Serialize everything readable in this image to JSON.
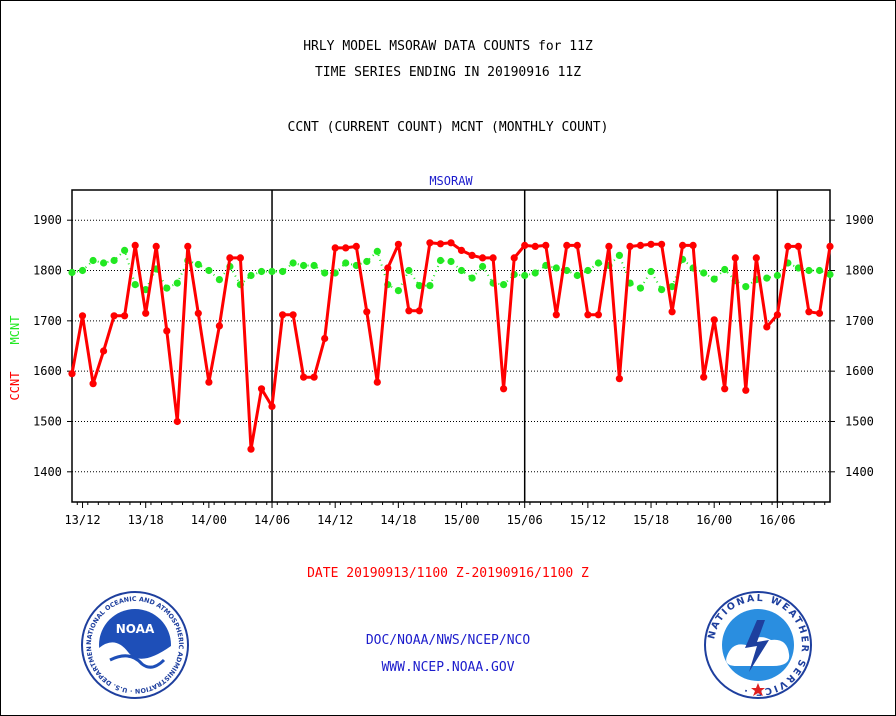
{
  "header": {
    "title_line1": "HRLY MODEL MSORAW DATA COUNTS for 11Z",
    "title_line2": "TIME SERIES ENDING IN 20190916 11Z",
    "subtitle": "CCNT (CURRENT COUNT) MCNT (MONTHLY COUNT)"
  },
  "footer": {
    "date_range": "DATE 20190913/1100 Z-20190916/1100 Z",
    "org_line": "DOC/NOAA/NWS/NCEP/NCO",
    "url_line": "WWW.NCEP.NOAA.GOV"
  },
  "logos": {
    "left_name": "NOAA",
    "left_ring_text": "NATIONAL OCEANIC AND ATMOSPHERIC ADMINISTRATION · U.S. DEPARTMENT OF COMMERCE ·",
    "right_ring_text": "NATIONAL WEATHER SERVICE ·"
  },
  "colors": {
    "ccnt": "#ff0000",
    "mcnt": "#22e822",
    "grid": "#000000",
    "title_blue": "#1c1ccc"
  },
  "chart_data": {
    "type": "line",
    "title": "MSORAW",
    "ylabel_left": [
      "CCNT",
      "MCNT"
    ],
    "ylim": [
      1340,
      1960
    ],
    "yticks": [
      1400,
      1500,
      1600,
      1700,
      1800,
      1900
    ],
    "xlim": [
      12.5,
      84.5
    ],
    "xticks": [
      {
        "x": 13.5,
        "label": "13/12"
      },
      {
        "x": 19.5,
        "label": "13/18"
      },
      {
        "x": 25.5,
        "label": "14/00"
      },
      {
        "x": 31.5,
        "label": "14/06"
      },
      {
        "x": 37.5,
        "label": "14/12"
      },
      {
        "x": 43.5,
        "label": "14/18"
      },
      {
        "x": 49.5,
        "label": "15/00"
      },
      {
        "x": 55.5,
        "label": "15/06"
      },
      {
        "x": 61.5,
        "label": "15/12"
      },
      {
        "x": 67.5,
        "label": "15/18"
      },
      {
        "x": 73.5,
        "label": "16/00"
      },
      {
        "x": 79.5,
        "label": "16/06"
      }
    ],
    "day_dividers": [
      31.5,
      55.5,
      79.5
    ],
    "grid": true,
    "series": [
      {
        "name": "CCNT",
        "values": [
          1595,
          1710,
          1575,
          1640,
          1710,
          1710,
          1850,
          1715,
          1848,
          1680,
          1500,
          1848,
          1715,
          1578,
          1690,
          1825,
          1825,
          1445,
          1565,
          1530,
          1712,
          1712,
          1588,
          1588,
          1665,
          1845,
          1845,
          1848,
          1718,
          1578,
          1805,
          1852,
          1720,
          1720,
          1855,
          1853,
          1855,
          1840,
          1830,
          1825,
          1825,
          1565,
          1825,
          1850,
          1848,
          1850,
          1712,
          1850,
          1850,
          1712,
          1712,
          1848,
          1585,
          1848,
          1850,
          1852,
          1852,
          1718,
          1850,
          1850,
          1588,
          1702,
          1565,
          1825,
          1562,
          1825,
          1688,
          1712,
          1848,
          1848,
          1718,
          1715,
          1848
        ]
      },
      {
        "name": "MCNT",
        "values": [
          1796,
          1800,
          1820,
          1815,
          1820,
          1840,
          1772,
          1762,
          1803,
          1765,
          1775,
          1820,
          1812,
          1800,
          1782,
          1808,
          1772,
          1790,
          1798,
          1798,
          1798,
          1815,
          1810,
          1810,
          1795,
          1795,
          1815,
          1810,
          1818,
          1838,
          1772,
          1760,
          1800,
          1770,
          1770,
          1820,
          1818,
          1800,
          1785,
          1808,
          1775,
          1772,
          1792,
          1790,
          1795,
          1810,
          1805,
          1800,
          1790,
          1800,
          1815,
          1810,
          1830,
          1775,
          1765,
          1798,
          1762,
          1768,
          1822,
          1805,
          1795,
          1783,
          1802,
          1780,
          1768,
          1782,
          1785,
          1790,
          1815,
          1805,
          1800,
          1800,
          1792
        ]
      }
    ]
  }
}
